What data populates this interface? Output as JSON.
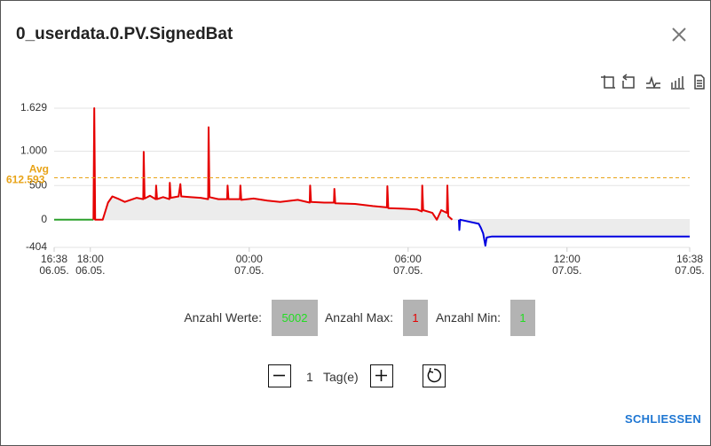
{
  "dialog": {
    "title": "0_userdata.0.PV.SignedBat",
    "close_button": "SCHLIESSEN"
  },
  "chart_data": {
    "type": "line",
    "xlim": [
      "06.05. 16:38",
      "07.05. 16:38"
    ],
    "xticks": [
      {
        "value": "06.05. 16:38",
        "label": [
          "16:38",
          "06.05."
        ]
      },
      {
        "value": "06.05. 18:00",
        "label": [
          "18:00",
          "06.05."
        ]
      },
      {
        "value": "07.05. 00:00",
        "label": [
          "00:00",
          "07.05."
        ]
      },
      {
        "value": "07.05. 06:00",
        "label": [
          "06:00",
          "07.05."
        ]
      },
      {
        "value": "07.05. 12:00",
        "label": [
          "12:00",
          "07.05."
        ]
      },
      {
        "value": "07.05. 16:38",
        "label": [
          "16:38",
          "07.05."
        ]
      }
    ],
    "ylim": [
      -404,
      1629
    ],
    "yticks": [
      {
        "value": 1629,
        "label": "1.629"
      },
      {
        "value": 1000,
        "label": "1.000"
      },
      500,
      0,
      -404
    ],
    "grid": true,
    "average": {
      "label": "Avg",
      "value": 612.593,
      "color": "#e8a317"
    },
    "series": [
      {
        "color": "#2ca02c",
        "x": [
          "06.05. 16:38",
          "06.05. 18:07",
          "07.05. 07:40",
          "07.05. 08:45"
        ],
        "values": [
          0,
          0,
          null,
          0
        ]
      },
      {
        "color": "#e60000",
        "x": [
          "06.05. 18:07",
          "06.05. 18:09",
          "06.05. 18:11",
          "06.05. 18:28",
          "06.05. 18:40",
          "06.05. 18:50",
          "06.05. 19:05",
          "06.05. 19:18",
          "06.05. 19:45",
          "06.05. 20:00",
          "06.05. 20:01",
          "06.05. 20:03",
          "06.05. 20:15",
          "06.05. 20:28",
          "06.05. 20:29",
          "06.05. 20:31",
          "06.05. 20:45",
          "06.05. 20:59",
          "06.05. 21:00",
          "06.05. 21:02",
          "06.05. 21:20",
          "06.05. 21:24",
          "06.05. 21:26",
          "06.05. 21:45",
          "06.05. 22:10",
          "06.05. 22:27",
          "06.05. 22:28",
          "06.05. 22:30",
          "06.05. 22:50",
          "06.05. 23:10",
          "06.05. 23:11",
          "06.05. 23:13",
          "06.05. 23:39",
          "06.05. 23:40",
          "06.05. 23:42",
          "07.05. 00:10",
          "07.05. 00:41",
          "07.05. 01:10",
          "07.05. 01:50",
          "07.05. 02:17",
          "07.05. 02:18",
          "07.05. 02:20",
          "07.05. 02:50",
          "07.05. 03:12",
          "07.05. 03:13",
          "07.05. 03:15",
          "07.05. 04:00",
          "07.05. 04:40",
          "07.05. 05:12",
          "07.05. 05:13",
          "07.05. 05:15",
          "07.05. 05:50",
          "07.05. 06:20",
          "07.05. 06:31",
          "07.05. 06:32",
          "07.05. 06:34",
          "07.05. 06:55",
          "07.05. 07:05",
          "07.05. 07:15",
          "07.05. 07:28",
          "07.05. 07:29",
          "07.05. 07:31",
          "07.05. 07:40"
        ],
        "values": [
          0,
          1629,
          0,
          0,
          250,
          340,
          300,
          260,
          320,
          300,
          990,
          310,
          350,
          300,
          500,
          300,
          330,
          300,
          540,
          320,
          340,
          520,
          340,
          330,
          320,
          300,
          1350,
          330,
          300,
          300,
          500,
          300,
          300,
          500,
          290,
          310,
          280,
          260,
          290,
          250,
          500,
          260,
          250,
          250,
          450,
          240,
          230,
          200,
          180,
          490,
          170,
          160,
          150,
          120,
          500,
          140,
          100,
          0,
          140,
          100,
          500,
          50,
          0
        ]
      },
      {
        "color": "#0000e0",
        "x": [
          "07.05. 07:55",
          "07.05. 07:56",
          "07.05. 07:58",
          "07.05. 08:40",
          "07.05. 08:45",
          "07.05. 08:50",
          "07.05. 08:55",
          "07.05. 08:58",
          "07.05. 09:10",
          "07.05. 16:38"
        ],
        "values": [
          0,
          -150,
          0,
          -60,
          -120,
          -200,
          -380,
          -260,
          -245,
          -245
        ]
      }
    ]
  },
  "stats": [
    {
      "label": "Anzahl Werte:",
      "value": 5002,
      "color": "#22dd22"
    },
    {
      "label": "Anzahl Max:",
      "value": 1,
      "color": "#e60000"
    },
    {
      "label": "Anzahl Min:",
      "value": 1,
      "color": "#22dd22"
    }
  ],
  "controls": {
    "count": 1,
    "unit": "Tag(e)"
  }
}
